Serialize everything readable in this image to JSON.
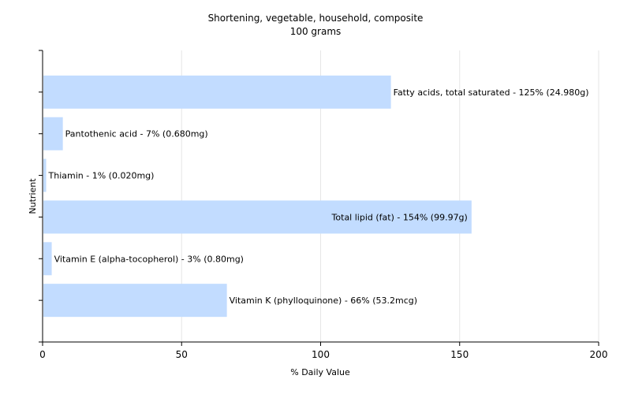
{
  "chart_data": {
    "type": "bar",
    "orientation": "horizontal",
    "title": "Shortening, vegetable, household, composite",
    "subtitle": "100 grams",
    "xlabel": "% Daily Value",
    "ylabel": "Nutrient",
    "xlim": [
      0,
      200
    ],
    "xticks": [
      0,
      50,
      100,
      150,
      200
    ],
    "grid": true,
    "legend": "none",
    "bar_color": "#c2dcff",
    "categories": [
      "Fatty acids, total saturated",
      "Pantothenic acid",
      "Thiamin",
      "Total lipid (fat)",
      "Vitamin E (alpha-tocopherol)",
      "Vitamin K (phylloquinone)"
    ],
    "values": [
      125,
      7,
      1,
      154,
      3,
      66
    ],
    "labels": [
      "Fatty acids, total saturated - 125% (24.980g)",
      "Pantothenic acid - 7% (0.680mg)",
      "Thiamin - 1% (0.020mg)",
      "Total lipid (fat) - 154% (99.97g)",
      "Vitamin E (alpha-tocopherol) - 3% (0.80mg)",
      "Vitamin K (phylloquinone) - 66% (53.2mcg)"
    ]
  }
}
